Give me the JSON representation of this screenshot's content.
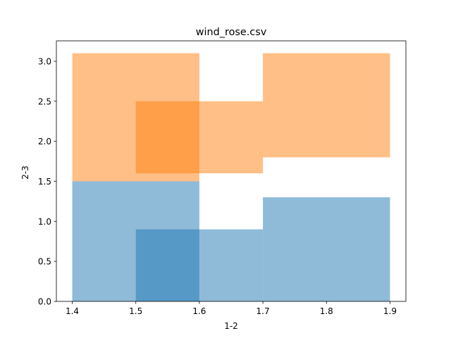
{
  "chart_data": {
    "type": "bar",
    "title": "wind_rose.csv",
    "xlabel": "1-2",
    "ylabel": "2-3",
    "xlim": [
      1.375,
      1.925
    ],
    "ylim": [
      0,
      3.255
    ],
    "xticks": [
      "1.4",
      "1.5",
      "1.6",
      "1.7",
      "1.8",
      "1.9"
    ],
    "yticks": [
      "0.0",
      "0.5",
      "1.0",
      "1.5",
      "2.0",
      "2.5",
      "3.0"
    ],
    "grid": false,
    "legend": "none",
    "series": [
      {
        "color": "#1f77b4",
        "opacity": 0.5,
        "bars": [
          {
            "x0": 1.4,
            "x1": 1.6,
            "bottom": 0,
            "height": 1.5
          },
          {
            "x0": 1.5,
            "x1": 1.7,
            "bottom": 0,
            "height": 0.9
          },
          {
            "x0": 1.7,
            "x1": 1.9,
            "bottom": 0,
            "height": 1.3
          }
        ]
      },
      {
        "color": "#ff7f0e",
        "opacity": 0.5,
        "bars": [
          {
            "x0": 1.4,
            "x1": 1.6,
            "bottom": 1.5,
            "height": 1.6
          },
          {
            "x0": 1.5,
            "x1": 1.7,
            "bottom": 1.6,
            "height": 0.9
          },
          {
            "x0": 1.7,
            "x1": 1.9,
            "bottom": 1.8,
            "height": 1.3
          }
        ]
      }
    ]
  }
}
